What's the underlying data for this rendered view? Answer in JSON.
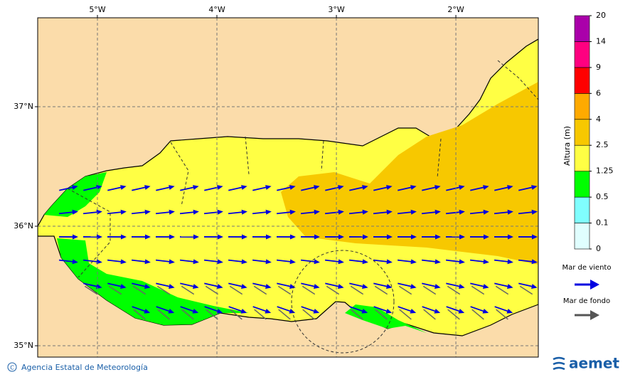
{
  "map": {
    "xlim": [
      -5.5,
      -1.31
    ],
    "ylim": [
      34.905,
      37.744
    ],
    "lon_ticks": [
      {
        "value": -5,
        "label": "5°W"
      },
      {
        "value": -4,
        "label": "4°W"
      },
      {
        "value": -3,
        "label": "3°W"
      },
      {
        "value": -2,
        "label": "2°W"
      }
    ],
    "lat_ticks": [
      {
        "value": 37,
        "label": "37°N"
      },
      {
        "value": 36,
        "label": "36°N"
      },
      {
        "value": 35,
        "label": "35°N"
      }
    ]
  },
  "colorbar": {
    "title": "Altura (m)",
    "levels": [
      0,
      0.1,
      0.5,
      1.25,
      2.5,
      4,
      6,
      9,
      14,
      20
    ],
    "colors": [
      "#e0ffff",
      "#80ffff",
      "#00ff00",
      "#ffff44",
      "#f7c800",
      "#ffaa00",
      "#ff0000",
      "#ff0080",
      "#aa00aa"
    ]
  },
  "legend": {
    "wind_sea": "Mar de viento",
    "swell": "Mar de fondo"
  },
  "footer": {
    "agency": "Agencia Estatal de Meteorología",
    "logo": "aemet"
  }
}
